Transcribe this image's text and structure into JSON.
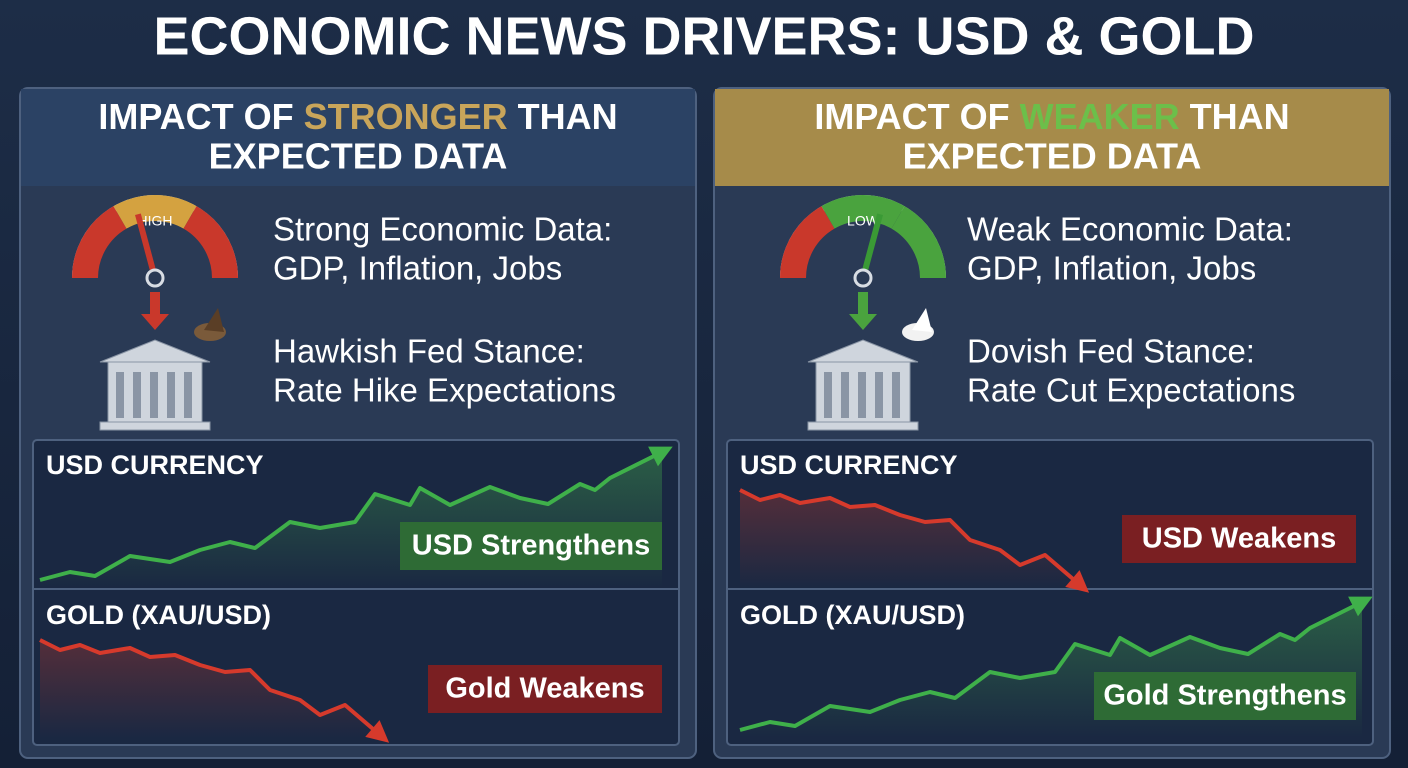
{
  "title": "ECONOMIC NEWS DRIVERS: USD & GOLD",
  "panels": [
    {
      "header": {
        "prefix": "IMPACT OF ",
        "highlight": "STRONGER",
        "suffix": " THAN",
        "line2": "EXPECTED DATA"
      },
      "gauge_label": "HIGH",
      "points": [
        {
          "title": "Strong Economic Data:",
          "detail": "GDP, Inflation, Jobs"
        },
        {
          "title": "Hawkish Fed Stance:",
          "detail": "Rate Hike Expectations"
        }
      ],
      "charts": [
        {
          "label": "USD CURRENCY",
          "result": "USD Strengthens"
        },
        {
          "label": "GOLD (XAU/USD)",
          "result": "Gold Weakens"
        }
      ]
    },
    {
      "header": {
        "prefix": "IMPACT OF ",
        "highlight": "WEAKER",
        "suffix": " THAN",
        "line2": "EXPECTED DATA"
      },
      "gauge_label": "LOW",
      "points": [
        {
          "title": "Weak Economic Data:",
          "detail": "GDP, Inflation, Jobs"
        },
        {
          "title": "Dovish Fed Stance:",
          "detail": "Rate Cut Expectations"
        }
      ],
      "charts": [
        {
          "label": "USD CURRENCY",
          "result": "USD Weakens"
        },
        {
          "label": "GOLD (XAU/USD)",
          "result": "Gold Strengthens"
        }
      ]
    }
  ]
}
